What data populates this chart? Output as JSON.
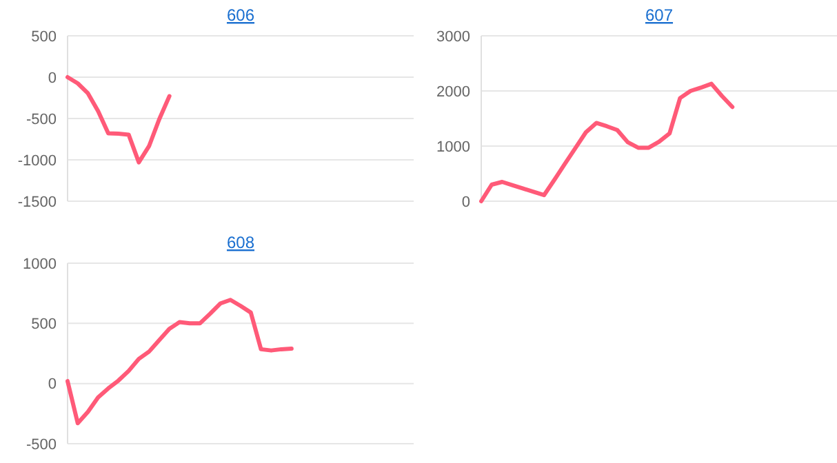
{
  "chart_data": [
    {
      "type": "line",
      "title": "606",
      "categories": [
        null,
        null,
        null,
        null,
        null,
        null,
        null,
        null,
        null,
        null,
        null,
        null,
        null,
        null,
        null,
        null,
        null,
        null,
        null,
        null,
        null,
        null,
        null,
        null,
        null,
        null,
        null,
        null,
        null,
        null,
        null,
        null,
        null,
        null,
        null
      ],
      "series": [
        {
          "color": "#ff5a78",
          "values": [
            0,
            -75,
            -195,
            -410,
            -680,
            -683,
            -695,
            -1030,
            -835,
            -510,
            -230,
            null,
            null,
            null,
            null,
            null,
            null,
            null,
            null,
            null,
            null,
            null,
            null,
            null,
            null,
            null,
            null,
            null,
            null,
            null,
            null,
            null,
            null,
            null,
            null
          ]
        }
      ],
      "ylim": [
        -1500,
        500
      ],
      "yticks": [
        -1500,
        -1000,
        -500,
        0,
        500
      ],
      "grid": "y",
      "tick_labels": "y",
      "marker": "none"
    },
    {
      "type": "line",
      "title": "607",
      "categories": [
        null,
        null,
        null,
        null,
        null,
        null,
        null,
        null,
        null,
        null,
        null,
        null,
        null,
        null,
        null,
        null,
        null,
        null,
        null,
        null,
        null,
        null,
        null,
        null,
        null,
        null,
        null,
        null,
        null,
        null,
        null,
        null,
        null,
        null,
        null
      ],
      "series": [
        {
          "color": "#ff5a78",
          "values": [
            0,
            300,
            350,
            290,
            230,
            170,
            110,
            390,
            680,
            965,
            1250,
            1420,
            1360,
            1290,
            1070,
            970,
            970,
            1080,
            1230,
            1870,
            2000,
            2060,
            2130,
            1910,
            1710,
            null,
            null,
            null,
            null,
            null,
            null,
            null,
            null,
            null,
            null
          ]
        }
      ],
      "ylim": [
        0,
        3000
      ],
      "yticks": [
        0,
        1000,
        2000,
        3000
      ],
      "grid": "y",
      "tick_labels": "y",
      "marker": "none"
    },
    {
      "type": "line",
      "title": "608",
      "categories": [
        null,
        null,
        null,
        null,
        null,
        null,
        null,
        null,
        null,
        null,
        null,
        null,
        null,
        null,
        null,
        null,
        null,
        null,
        null,
        null,
        null,
        null,
        null,
        null,
        null,
        null,
        null,
        null,
        null,
        null,
        null,
        null,
        null,
        null,
        null
      ],
      "series": [
        {
          "color": "#ff5a78",
          "values": [
            20,
            -330,
            -235,
            -115,
            -40,
            25,
            105,
            205,
            265,
            360,
            455,
            510,
            500,
            500,
            580,
            665,
            695,
            645,
            590,
            285,
            275,
            285,
            290,
            null,
            null,
            null,
            null,
            null,
            null,
            null,
            null,
            null,
            null,
            null,
            null
          ]
        }
      ],
      "ylim": [
        -500,
        1000
      ],
      "yticks": [
        -500,
        0,
        500,
        1000
      ],
      "grid": "y",
      "tick_labels": "y",
      "marker": "none"
    }
  ]
}
